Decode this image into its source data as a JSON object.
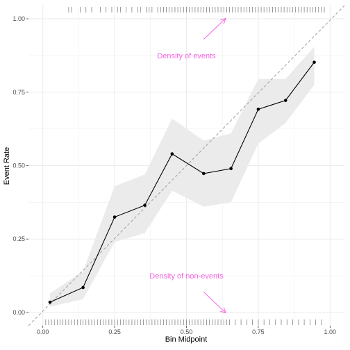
{
  "chart_data": {
    "type": "line",
    "xlabel": "Bin Midpoint",
    "ylabel": "Event Rate",
    "xlim": [
      -0.05,
      1.05
    ],
    "ylim": [
      -0.045,
      1.045
    ],
    "x_ticks": [
      0.0,
      0.25,
      0.5,
      0.75,
      1.0
    ],
    "x_tick_labels": [
      "0.00",
      "0.25",
      "0.50",
      "0.75",
      "1.00"
    ],
    "y_ticks": [
      0.0,
      0.25,
      0.5,
      0.75,
      1.0
    ],
    "y_tick_labels": [
      "0.00",
      "0.25",
      "0.50",
      "0.75",
      "1.00"
    ],
    "grid": true,
    "series": [
      {
        "x": [
          0.025,
          0.14,
          0.25,
          0.355,
          0.45,
          0.56,
          0.655,
          0.75,
          0.845,
          0.945
        ],
        "y": [
          0.035,
          0.085,
          0.325,
          0.365,
          0.54,
          0.473,
          0.49,
          0.692,
          0.722,
          0.852
        ],
        "lower": [
          0.02,
          0.045,
          0.24,
          0.27,
          0.415,
          0.36,
          0.375,
          0.575,
          0.645,
          0.775
        ],
        "upper": [
          0.065,
          0.14,
          0.43,
          0.47,
          0.66,
          0.585,
          0.61,
          0.795,
          0.795,
          0.905
        ],
        "color": "#000000",
        "band_color": "#ebebeb"
      }
    ],
    "reference_line": {
      "from": [
        -0.05,
        -0.045
      ],
      "to": [
        1.05,
        1.045
      ],
      "style": "dashed",
      "color": "#a6a6a6"
    },
    "rug_events": [
      0.09,
      0.1,
      0.13,
      0.15,
      0.17,
      0.2,
      0.22,
      0.24,
      0.26,
      0.27,
      0.29,
      0.31,
      0.33,
      0.34,
      0.36,
      0.37,
      0.38,
      0.4,
      0.41,
      0.42,
      0.43,
      0.44,
      0.45,
      0.46,
      0.47,
      0.48,
      0.49,
      0.5,
      0.51,
      0.52,
      0.53,
      0.54,
      0.55,
      0.56,
      0.57,
      0.58,
      0.59,
      0.6,
      0.61,
      0.62,
      0.63,
      0.64,
      0.65,
      0.66,
      0.67,
      0.68,
      0.69,
      0.7,
      0.71,
      0.72,
      0.73,
      0.74,
      0.75,
      0.76,
      0.77,
      0.78,
      0.79,
      0.8,
      0.81,
      0.82,
      0.83,
      0.84,
      0.85,
      0.86,
      0.87,
      0.88,
      0.89,
      0.9,
      0.91,
      0.92,
      0.93,
      0.94,
      0.95,
      0.96,
      0.97,
      0.98
    ],
    "rug_nonevents": [
      0.01,
      0.02,
      0.03,
      0.04,
      0.05,
      0.06,
      0.07,
      0.08,
      0.09,
      0.1,
      0.11,
      0.12,
      0.13,
      0.14,
      0.15,
      0.16,
      0.17,
      0.18,
      0.19,
      0.2,
      0.21,
      0.22,
      0.23,
      0.24,
      0.25,
      0.26,
      0.27,
      0.28,
      0.29,
      0.3,
      0.31,
      0.32,
      0.33,
      0.34,
      0.35,
      0.36,
      0.37,
      0.38,
      0.39,
      0.4,
      0.41,
      0.42,
      0.43,
      0.44,
      0.45,
      0.46,
      0.47,
      0.48,
      0.49,
      0.5,
      0.51,
      0.52,
      0.53,
      0.54,
      0.55,
      0.56,
      0.57,
      0.58,
      0.59,
      0.6,
      0.61,
      0.62,
      0.63,
      0.64,
      0.65,
      0.67,
      0.69,
      0.71,
      0.73,
      0.75,
      0.77,
      0.79,
      0.81,
      0.83,
      0.85,
      0.87,
      0.89,
      0.91,
      0.93,
      0.95,
      0.97
    ],
    "annotations": [
      {
        "text": "Density of events",
        "x": 0.5,
        "y": 0.875,
        "color": "#f564e3",
        "arrow_from": [
          0.56,
          0.93
        ],
        "arrow_to": [
          0.635,
          1.0
        ]
      },
      {
        "text": "Density of non-events",
        "x": 0.5,
        "y": 0.125,
        "color": "#f564e3",
        "arrow_from": [
          0.56,
          0.07
        ],
        "arrow_to": [
          0.635,
          0.0
        ]
      }
    ]
  }
}
